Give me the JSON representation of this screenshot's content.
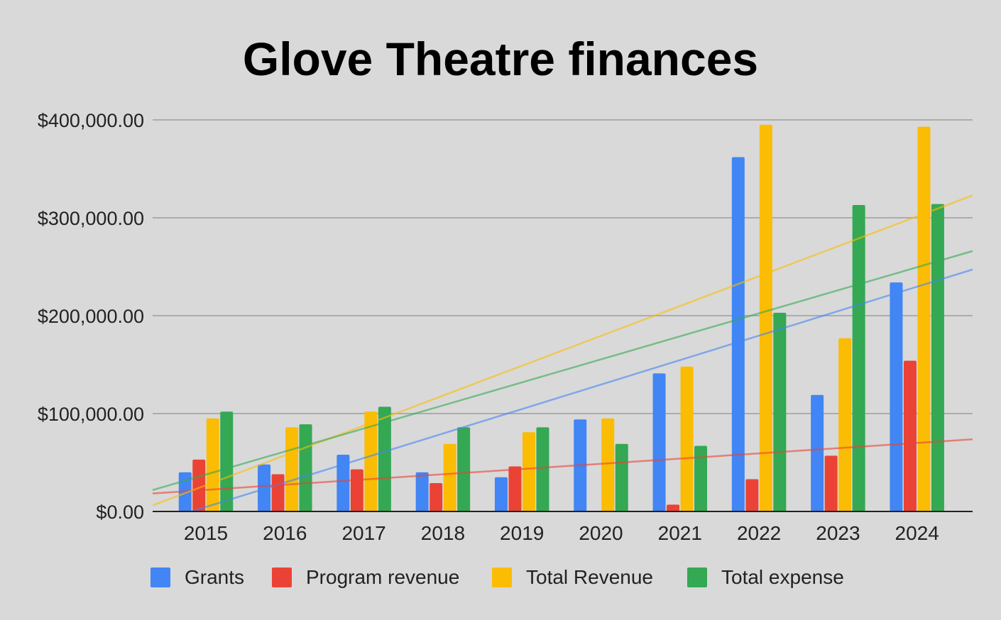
{
  "chart_data": {
    "type": "bar",
    "title": "Glove Theatre finances",
    "xlabel": "",
    "ylabel": "",
    "ylim": [
      0,
      400000
    ],
    "yticks": [
      0,
      100000,
      200000,
      300000,
      400000
    ],
    "ytick_labels": [
      "$0.00",
      "$100,000.00",
      "$200,000.00",
      "$300,000.00",
      "$400,000.00"
    ],
    "grid": true,
    "legend_position": "bottom",
    "trendlines": true,
    "categories": [
      "2015",
      "2016",
      "2017",
      "2018",
      "2019",
      "2020",
      "2021",
      "2022",
      "2023",
      "2024"
    ],
    "series": [
      {
        "name": "Grants",
        "color": "#4285f4",
        "values": [
          40000,
          48000,
          58000,
          40000,
          35000,
          94000,
          141000,
          362000,
          119000,
          234000
        ]
      },
      {
        "name": "Program revenue",
        "color": "#ea4335",
        "values": [
          53000,
          38000,
          43000,
          29000,
          46000,
          0,
          7000,
          33000,
          57000,
          154000
        ]
      },
      {
        "name": "Total Revenue",
        "color": "#fbbc04",
        "values": [
          95000,
          86000,
          102000,
          69000,
          81000,
          95000,
          148000,
          395000,
          177000,
          393000
        ]
      },
      {
        "name": "Total expense",
        "color": "#34a853",
        "values": [
          102000,
          89000,
          107000,
          86000,
          86000,
          69000,
          67000,
          203000,
          313000,
          314000
        ]
      }
    ]
  }
}
